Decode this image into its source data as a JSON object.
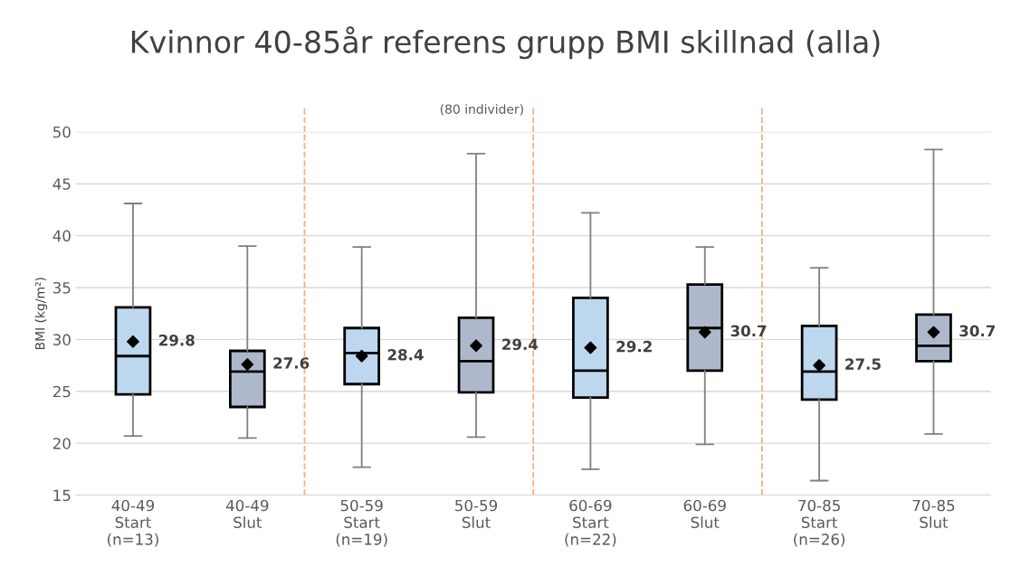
{
  "chart_data": {
    "type": "box",
    "title": "Kvinnor 40-85år referens grupp BMI skillnad (alla)",
    "ylabel": "BMI (kg/m²)",
    "categories": [
      "40-49\nStart\n(n=13)",
      "40-49\nSlut",
      "50-59\nStart\n(n=19)",
      "50-59\nSlut",
      "60-69\nStart\n(n=22)",
      "60-69\nSlut",
      "70-85\nStart\n(n=26)",
      "70-85\nSlut"
    ],
    "boxes": [
      {
        "low": 20.7,
        "q1": 24.7,
        "median": 28.4,
        "q3": 33.1,
        "high": 43.1
      },
      {
        "low": 20.5,
        "q1": 23.5,
        "median": 26.9,
        "q3": 28.9,
        "high": 39.0
      },
      {
        "low": 17.7,
        "q1": 25.7,
        "median": 28.7,
        "q3": 31.1,
        "high": 38.9
      },
      {
        "low": 20.6,
        "q1": 24.9,
        "median": 27.9,
        "q3": 32.1,
        "high": 47.9
      },
      {
        "low": 17.5,
        "q1": 24.4,
        "median": 27.0,
        "q3": 34.0,
        "high": 42.2
      },
      {
        "low": 19.9,
        "q1": 27.0,
        "median": 31.1,
        "q3": 35.3,
        "high": 38.9
      },
      {
        "low": 16.4,
        "q1": 24.2,
        "median": 26.9,
        "q3": 31.3,
        "high": 36.9
      },
      {
        "low": 20.9,
        "q1": 27.9,
        "median": 29.4,
        "q3": 32.4,
        "high": 48.3
      }
    ],
    "colors": [
      "#bdd7ee",
      "#adb9ca",
      "#bdd7ee",
      "#adb9ca",
      "#bdd7ee",
      "#adb9ca",
      "#bdd7ee",
      "#adb9ca"
    ],
    "data_labels": true,
    "marker": "diamond",
    "ylim": [
      15,
      50
    ],
    "yticks": [
      15,
      20,
      25,
      30,
      35,
      40,
      45,
      50
    ],
    "grid": "y",
    "legend": false,
    "series": [
      {
        "type": "scatter",
        "color": "#000000",
        "values": [
          29.8,
          27.6,
          28.4,
          29.4,
          29.2,
          30.7,
          27.5,
          30.7
        ]
      }
    ],
    "annotations": [
      "(80 individer)"
    ]
  }
}
